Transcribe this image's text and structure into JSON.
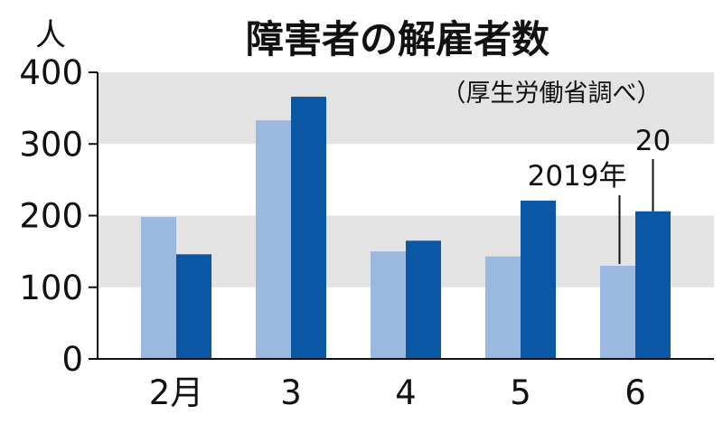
{
  "chart_data": {
    "type": "bar",
    "title": "障害者の解雇者数",
    "unit_label": "人",
    "source": "（厚生労働省調べ）",
    "categories": [
      "2月",
      "3",
      "4",
      "5",
      "6"
    ],
    "series": [
      {
        "name": "2019年",
        "values": [
          198,
          333,
          150,
          143,
          130
        ],
        "color": "#9ab8e0"
      },
      {
        "name": "20",
        "values": [
          146,
          366,
          165,
          221,
          206
        ],
        "color": "#0a57a6"
      }
    ],
    "ylim": [
      0,
      400
    ],
    "yticks": [
      0,
      100,
      200,
      300,
      400
    ],
    "bands": [
      [
        100,
        200
      ],
      [
        300,
        400
      ]
    ],
    "band_color": "#e3e3e3",
    "grid": false,
    "legend": "inline annotations"
  }
}
